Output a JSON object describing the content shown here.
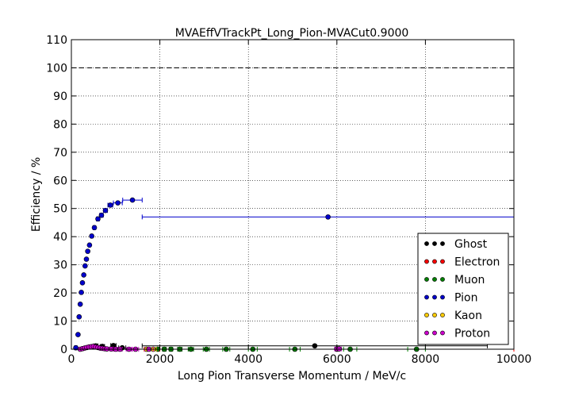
{
  "chart_data": {
    "type": "scatter",
    "title": "MVAEffVTrackPt_Long_Pion-MVACut0.9000",
    "xlabel": "Long Pion Transverse Momentum / MeV/c",
    "ylabel": "Efficiency / %",
    "xlim": [
      0,
      10000
    ],
    "ylim": [
      0,
      110
    ],
    "xticks": [
      0,
      2000,
      4000,
      6000,
      8000,
      10000
    ],
    "yticks": [
      0,
      10,
      20,
      30,
      40,
      50,
      60,
      70,
      80,
      90,
      100,
      110
    ],
    "grid": true,
    "reference_line_y": 100,
    "legend_position": "lower-right",
    "series": [
      {
        "name": "Ghost",
        "color": "#000000",
        "points": [
          {
            "x": 550,
            "y": 1.2,
            "xerr": 50
          },
          {
            "x": 700,
            "y": 1.0,
            "xerr": 50
          },
          {
            "x": 950,
            "y": 1.3,
            "xerr": 60
          },
          {
            "x": 1150,
            "y": 0.5,
            "xerr": 80
          },
          {
            "x": 5500,
            "y": 1.2,
            "xerr": 3900
          }
        ]
      },
      {
        "name": "Electron",
        "color": "#ff0000",
        "points": [
          {
            "x": 6000,
            "y": 0,
            "xerr": 4000
          }
        ]
      },
      {
        "name": "Muon",
        "color": "#008000",
        "points": [
          {
            "x": 1950,
            "y": 0,
            "xerr": 30
          },
          {
            "x": 2100,
            "y": 0,
            "xerr": 40
          },
          {
            "x": 2250,
            "y": 0,
            "xerr": 40
          },
          {
            "x": 2450,
            "y": 0,
            "xerr": 50
          },
          {
            "x": 2700,
            "y": 0,
            "xerr": 60
          },
          {
            "x": 3050,
            "y": 0,
            "xerr": 70
          },
          {
            "x": 3500,
            "y": 0,
            "xerr": 80
          },
          {
            "x": 4100,
            "y": 0,
            "xerr": 100
          },
          {
            "x": 5050,
            "y": 0,
            "xerr": 120
          },
          {
            "x": 6300,
            "y": 0,
            "xerr": 150
          },
          {
            "x": 7800,
            "y": 0,
            "xerr": 200
          }
        ]
      },
      {
        "name": "Pion",
        "color": "#0000cc",
        "points": [
          {
            "x": 100,
            "y": 0.5,
            "xerr": 30
          },
          {
            "x": 150,
            "y": 5.2,
            "xerr": 20
          },
          {
            "x": 175,
            "y": 11.5,
            "xerr": 12
          },
          {
            "x": 200,
            "y": 16.0,
            "xerr": 12
          },
          {
            "x": 225,
            "y": 20.2,
            "xerr": 12
          },
          {
            "x": 250,
            "y": 23.6,
            "xerr": 12
          },
          {
            "x": 280,
            "y": 26.4,
            "xerr": 15
          },
          {
            "x": 310,
            "y": 29.6,
            "xerr": 15
          },
          {
            "x": 340,
            "y": 32.0,
            "xerr": 15
          },
          {
            "x": 370,
            "y": 34.8,
            "xerr": 15
          },
          {
            "x": 410,
            "y": 37.0,
            "xerr": 20
          },
          {
            "x": 460,
            "y": 40.2,
            "xerr": 25
          },
          {
            "x": 520,
            "y": 43.2,
            "xerr": 30
          },
          {
            "x": 600,
            "y": 46.3,
            "xerr": 35
          },
          {
            "x": 680,
            "y": 47.6,
            "xerr": 40
          },
          {
            "x": 770,
            "y": 49.3,
            "xerr": 45
          },
          {
            "x": 880,
            "y": 51.2,
            "xerr": 55
          },
          {
            "x": 1050,
            "y": 52.0,
            "xerr": 100
          },
          {
            "x": 1380,
            "y": 53.0,
            "xerr": 220
          },
          {
            "x": 5800,
            "y": 47.0,
            "xerr": 4200
          }
        ]
      },
      {
        "name": "Kaon",
        "color": "#ffcc00",
        "points": [
          {
            "x": 1700,
            "y": 0,
            "xerr": 60
          },
          {
            "x": 1850,
            "y": 0,
            "xerr": 70
          }
        ]
      },
      {
        "name": "Proton",
        "color": "#cc00cc",
        "points": [
          {
            "x": 200,
            "y": 0,
            "xerr": 20
          },
          {
            "x": 250,
            "y": 0.2,
            "xerr": 20
          },
          {
            "x": 300,
            "y": 0.4,
            "xerr": 20
          },
          {
            "x": 350,
            "y": 0.6,
            "xerr": 20
          },
          {
            "x": 400,
            "y": 0.8,
            "xerr": 20
          },
          {
            "x": 450,
            "y": 0.9,
            "xerr": 20
          },
          {
            "x": 500,
            "y": 1.0,
            "xerr": 20
          },
          {
            "x": 550,
            "y": 0.8,
            "xerr": 20
          },
          {
            "x": 600,
            "y": 0.6,
            "xerr": 20
          },
          {
            "x": 650,
            "y": 0.4,
            "xerr": 20
          },
          {
            "x": 700,
            "y": 0.3,
            "xerr": 20
          },
          {
            "x": 750,
            "y": 0.2,
            "xerr": 20
          },
          {
            "x": 800,
            "y": 0.1,
            "xerr": 25
          },
          {
            "x": 900,
            "y": 0.1,
            "xerr": 40
          },
          {
            "x": 1000,
            "y": 0,
            "xerr": 50
          },
          {
            "x": 1100,
            "y": 0,
            "xerr": 50
          },
          {
            "x": 1300,
            "y": 0,
            "xerr": 60
          },
          {
            "x": 1450,
            "y": 0,
            "xerr": 70
          },
          {
            "x": 1750,
            "y": 0,
            "xerr": 100
          },
          {
            "x": 6000,
            "y": 0.1,
            "xerr": 50
          },
          {
            "x": 6050,
            "y": 0.1,
            "xerr": 50
          }
        ]
      }
    ]
  }
}
